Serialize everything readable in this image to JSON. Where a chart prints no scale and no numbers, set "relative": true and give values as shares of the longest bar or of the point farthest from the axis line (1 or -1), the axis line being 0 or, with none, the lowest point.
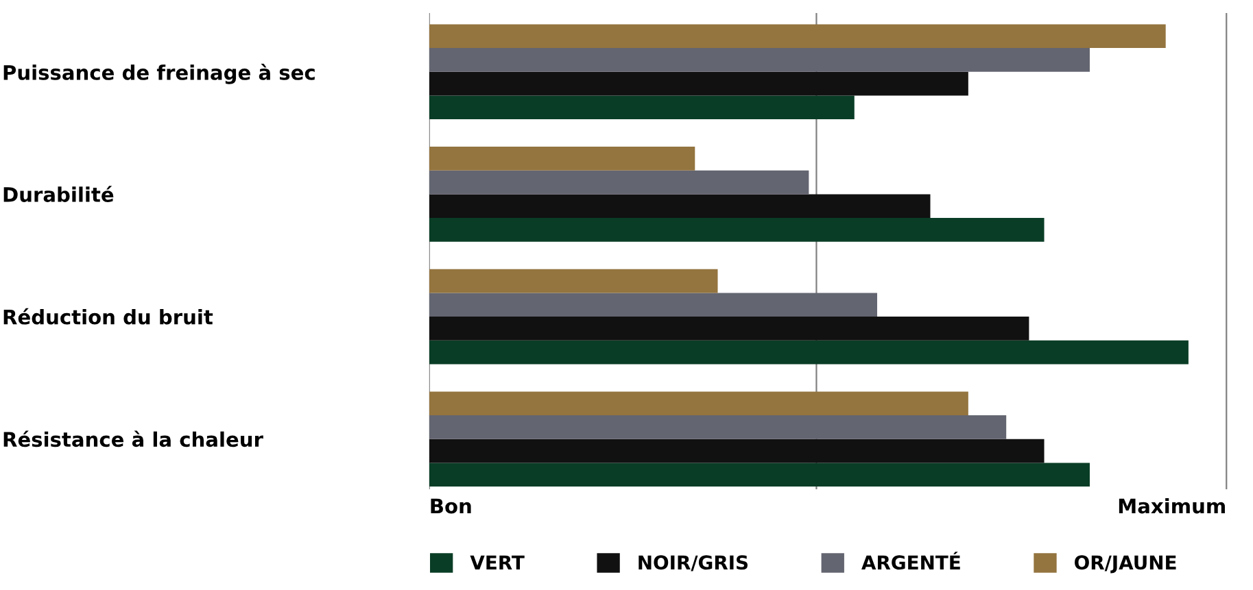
{
  "chart_data": {
    "type": "bar",
    "orientation": "horizontal",
    "relative": true,
    "categories": [
      "Puissance de freinage à sec",
      "Durabilité",
      "Réduction du bruit",
      "Résistance à la chaleur"
    ],
    "series": [
      {
        "name": "VERT",
        "color": "#0a3d26",
        "values": [
          0.56,
          0.81,
          1.0,
          0.87
        ]
      },
      {
        "name": "NOIR/GRIS",
        "color": "#111111",
        "values": [
          0.71,
          0.66,
          0.79,
          0.81
        ]
      },
      {
        "name": "ARGENTÉ",
        "color": "#636570",
        "values": [
          0.87,
          0.5,
          0.59,
          0.76
        ]
      },
      {
        "name": "OR/JAUNE",
        "color": "#94743f",
        "values": [
          0.97,
          0.35,
          0.38,
          0.71
        ]
      }
    ],
    "ref_lines": [
      {
        "axis": "x",
        "value": 0,
        "label": "Bon",
        "color": "#808080"
      },
      {
        "axis": "x",
        "value": 0.51,
        "label": null,
        "color": "#808080"
      },
      {
        "axis": "x",
        "value": 1.05,
        "label": "Maximum",
        "color": "#808080"
      }
    ],
    "legend": "bottom"
  }
}
